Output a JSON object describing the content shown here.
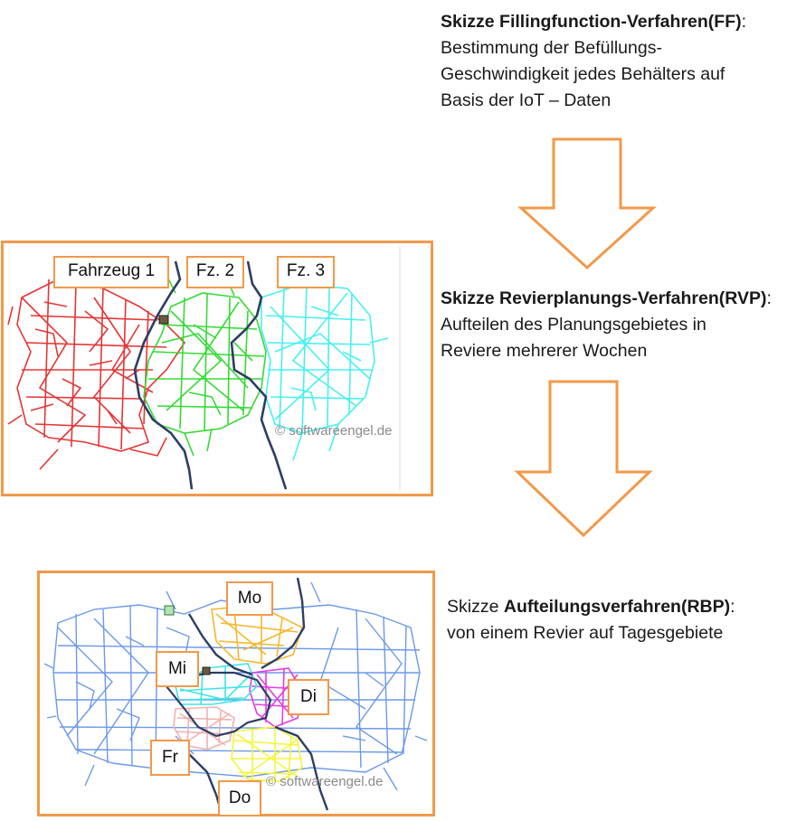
{
  "step1": {
    "title": "Skizze Fillingfunction-Verfahren(FF)",
    "title_suffix": ":",
    "line1": "Bestimmung der Befüllungs-",
    "line2": "Geschwindigkeit jedes Behälters auf",
    "line3": "Basis der IoT – Daten"
  },
  "step2": {
    "title": "Skizze Revierplanungs-Verfahren(RVP)",
    "title_suffix": ":",
    "line1": "Aufteilen des Planungsgebietes in",
    "line2": "Reviere mehrerer Wochen"
  },
  "step3": {
    "title_prefix": "Skizze ",
    "title": "Aufteilungsverfahren(RBP)",
    "title_suffix": ":",
    "line1": "von einem  Revier auf Tagesgebiete"
  },
  "map1": {
    "labels": [
      "Fahrzeug 1",
      "Fz. 2",
      "Fz. 3"
    ],
    "watermark": "© softwareengel.de"
  },
  "map2": {
    "labels": [
      "Mo",
      "Mi",
      "Di",
      "Fr",
      "Do"
    ],
    "watermark": "© softwareengel.de"
  },
  "colors": {
    "accent_orange": "#f2994a",
    "vehicle1": "#e52b2b",
    "vehicle2": "#2bd92b",
    "vehicle3": "#3ff0f0",
    "revier": "#5b8ee6",
    "monday": "#f5b82e",
    "tuesday": "#e63be0",
    "wednesday": "#3ee5e5",
    "thursday": "#f5f53a",
    "friday": "#f2b0b0",
    "border_line": "#2c3e66"
  }
}
